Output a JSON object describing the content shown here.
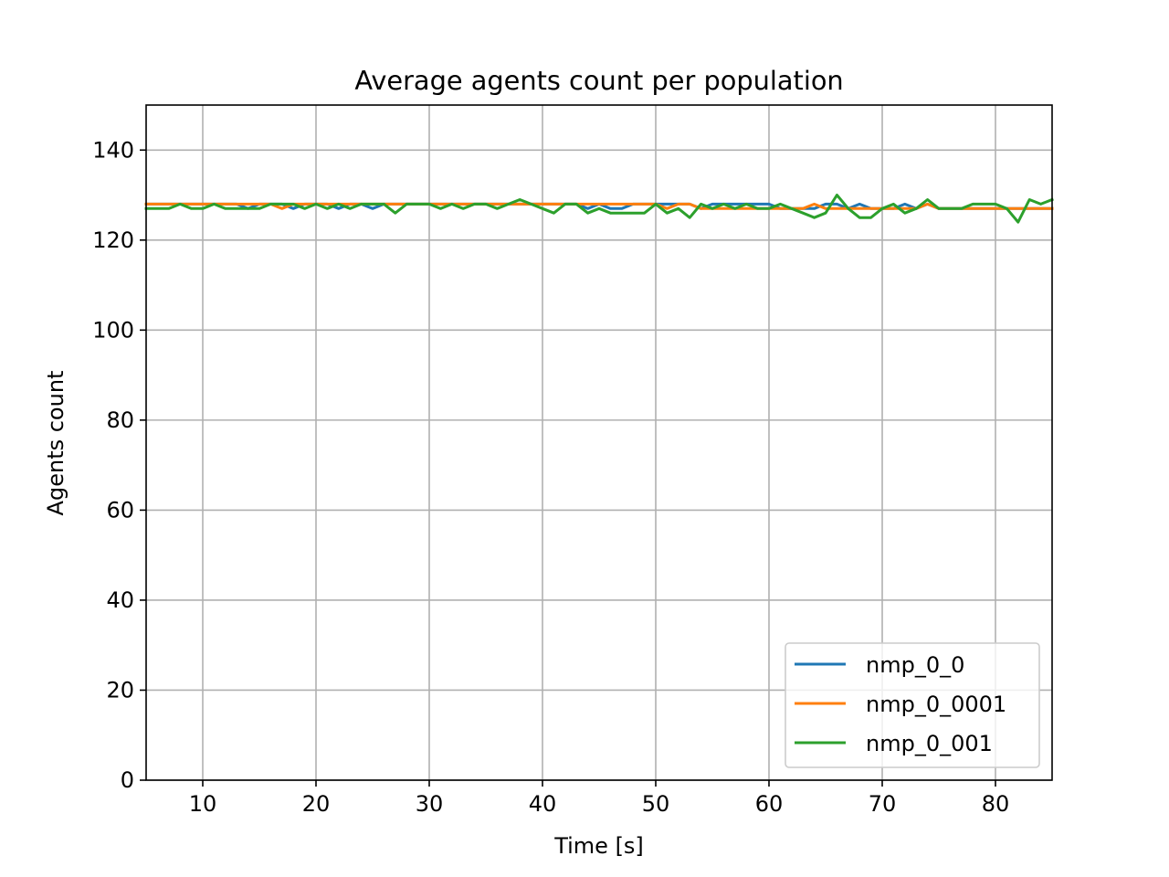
{
  "chart_data": {
    "type": "line",
    "title": "Average agents count per population",
    "xlabel": "Time [s]",
    "ylabel": "Agents count",
    "xlim": [
      5,
      85
    ],
    "ylim": [
      0,
      150
    ],
    "xticks": [
      10,
      20,
      30,
      40,
      50,
      60,
      70,
      80
    ],
    "yticks": [
      0,
      20,
      40,
      60,
      80,
      100,
      120,
      140
    ],
    "grid": true,
    "legend_position": "lower-right",
    "x": [
      5,
      6,
      7,
      8,
      9,
      10,
      11,
      12,
      13,
      14,
      15,
      16,
      17,
      18,
      19,
      20,
      21,
      22,
      23,
      24,
      25,
      26,
      27,
      28,
      29,
      30,
      31,
      32,
      33,
      34,
      35,
      36,
      37,
      38,
      39,
      40,
      41,
      42,
      43,
      44,
      45,
      46,
      47,
      48,
      49,
      50,
      51,
      52,
      53,
      54,
      55,
      56,
      57,
      58,
      59,
      60,
      61,
      62,
      63,
      64,
      65,
      66,
      67,
      68,
      69,
      70,
      71,
      72,
      73,
      74,
      75,
      76,
      77,
      78,
      79,
      80,
      81,
      82,
      83,
      84,
      85
    ],
    "series": [
      {
        "name": "nmp_0_0",
        "color": "#1f77b4",
        "values": [
          128,
          128,
          128,
          128,
          128,
          128,
          128,
          128,
          128,
          127,
          128,
          128,
          128,
          127,
          128,
          128,
          128,
          127,
          128,
          128,
          127,
          128,
          128,
          128,
          128,
          128,
          128,
          128,
          128,
          128,
          128,
          128,
          128,
          128,
          128,
          128,
          128,
          128,
          128,
          127,
          128,
          127,
          127,
          128,
          128,
          128,
          128,
          128,
          128,
          127,
          128,
          128,
          128,
          128,
          128,
          128,
          127,
          127,
          127,
          127,
          128,
          128,
          127,
          128,
          127,
          127,
          127,
          128,
          127,
          128,
          127,
          127,
          127,
          127,
          127,
          127,
          127,
          127,
          127,
          127,
          127
        ]
      },
      {
        "name": "nmp_0_0001",
        "color": "#ff7f0e",
        "values": [
          128,
          128,
          128,
          128,
          128,
          128,
          128,
          128,
          128,
          128,
          128,
          128,
          127,
          128,
          128,
          128,
          128,
          128,
          128,
          128,
          128,
          128,
          128,
          128,
          128,
          128,
          128,
          128,
          128,
          128,
          128,
          128,
          128,
          128,
          128,
          128,
          128,
          128,
          128,
          128,
          128,
          128,
          128,
          128,
          128,
          128,
          127,
          128,
          128,
          127,
          127,
          127,
          127,
          127,
          127,
          127,
          127,
          127,
          127,
          128,
          127,
          127,
          127,
          127,
          127,
          127,
          127,
          127,
          127,
          128,
          127,
          127,
          127,
          127,
          127,
          127,
          127,
          127,
          127,
          127,
          127
        ]
      },
      {
        "name": "nmp_0_001",
        "color": "#2ca02c",
        "values": [
          127,
          127,
          127,
          128,
          127,
          127,
          128,
          127,
          127,
          127,
          127,
          128,
          128,
          128,
          127,
          128,
          127,
          128,
          127,
          128,
          128,
          128,
          126,
          128,
          128,
          128,
          127,
          128,
          127,
          128,
          128,
          127,
          128,
          129,
          128,
          127,
          126,
          128,
          128,
          126,
          127,
          126,
          126,
          126,
          126,
          128,
          126,
          127,
          125,
          128,
          127,
          128,
          127,
          128,
          127,
          127,
          128,
          127,
          126,
          125,
          126,
          130,
          127,
          125,
          125,
          127,
          128,
          126,
          127,
          129,
          127,
          127,
          127,
          128,
          128,
          128,
          127,
          124,
          129,
          128,
          129
        ]
      }
    ]
  }
}
